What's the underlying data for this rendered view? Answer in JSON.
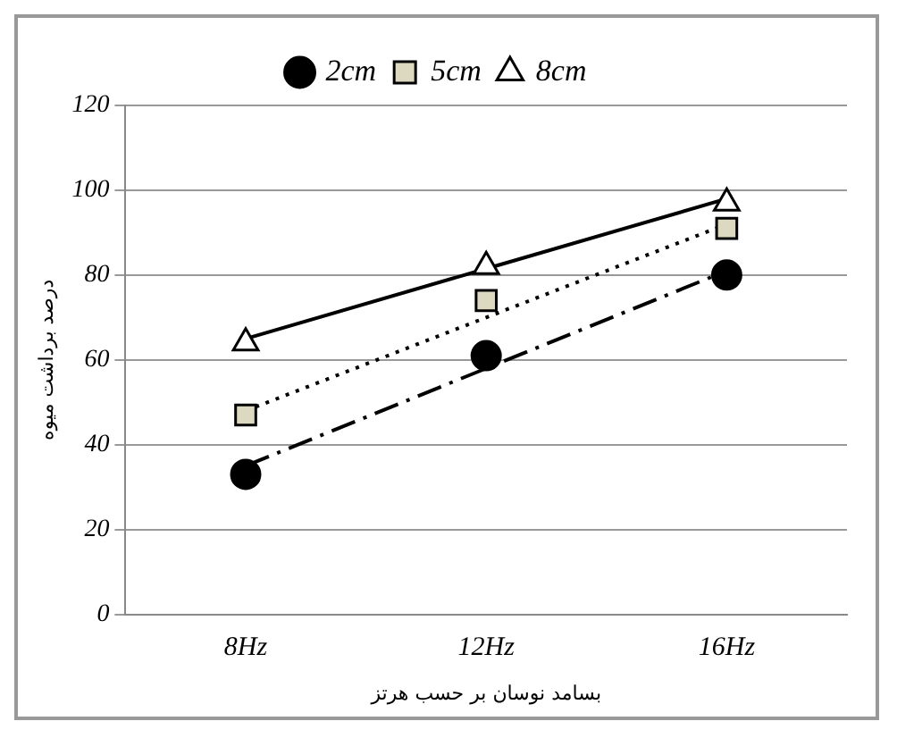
{
  "chart_data": {
    "type": "scatter",
    "xlabel": "بسامد نوسان بر حسب هرتز",
    "ylabel": "درصد برداشت میوه",
    "categories": [
      "8Hz",
      "12Hz",
      "16Hz"
    ],
    "series": [
      {
        "name": "2cm",
        "marker": "circle",
        "color": "#000000",
        "values": [
          33,
          61,
          80
        ]
      },
      {
        "name": "5cm",
        "marker": "square",
        "color": "#ddd8c0",
        "values": [
          47,
          74,
          91
        ]
      },
      {
        "name": "8cm",
        "marker": "triangle",
        "color": "#ffffff",
        "values": [
          64,
          82,
          97
        ]
      },
      {
        "type": "line",
        "marker": "none",
        "line_style": "dashdot",
        "color": "#000000",
        "values": [
          35,
          58,
          81
        ]
      },
      {
        "type": "line",
        "marker": "none",
        "line_style": "dotted",
        "color": "#000000",
        "values": [
          48,
          70,
          92
        ]
      },
      {
        "type": "line",
        "marker": "none",
        "line_style": "solid",
        "color": "#000000",
        "values": [
          65,
          81.5,
          98
        ]
      }
    ],
    "ylim": [
      0,
      120
    ],
    "yticks": [
      0,
      20,
      40,
      60,
      80,
      100,
      120
    ],
    "grid": "y",
    "legend": "top"
  }
}
